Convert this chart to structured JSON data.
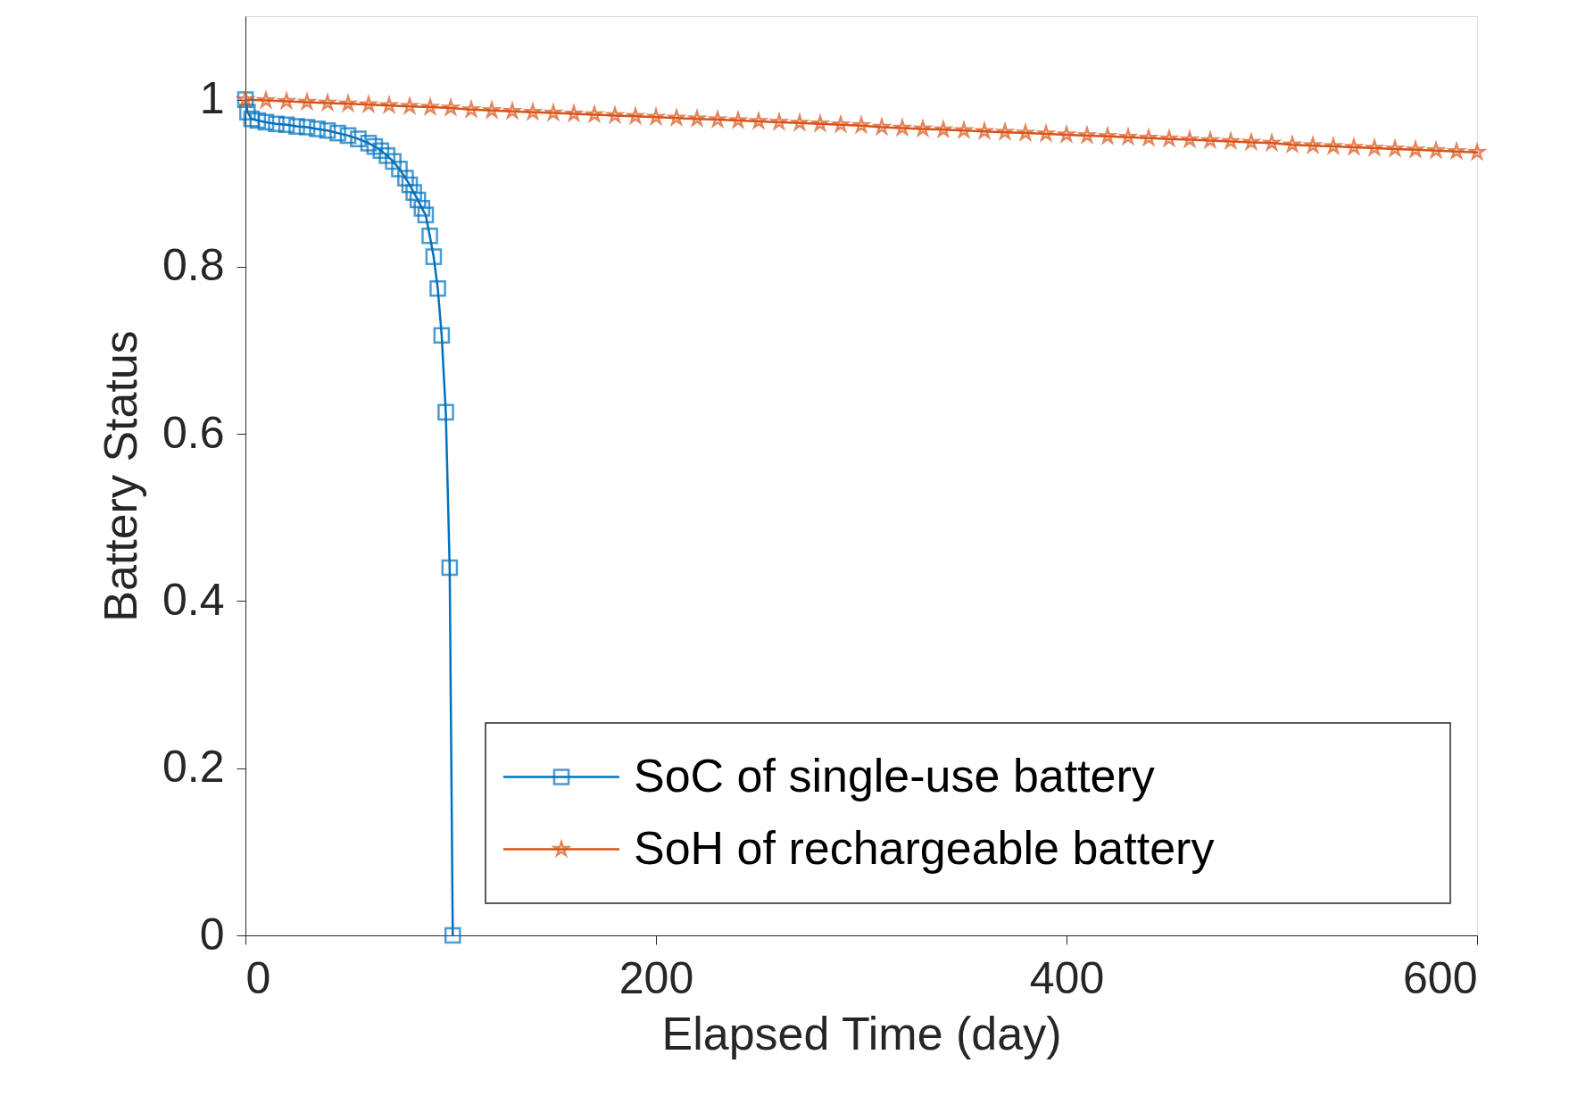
{
  "chart_data": {
    "type": "line",
    "xlabel": "Elapsed Time (day)",
    "ylabel": "Battery Status",
    "xlim": [
      0,
      600
    ],
    "ylim": [
      0,
      1.1
    ],
    "xticks": [
      0,
      200,
      400,
      600
    ],
    "yticks": [
      0,
      0.2,
      0.4,
      0.6,
      0.8,
      1
    ],
    "grid": false,
    "legend": "bottom right",
    "line_style": "solid",
    "series": [
      {
        "name": "SoC of single-use battery",
        "color": "#0072bd",
        "marker": "square",
        "x": [
          0,
          1,
          3,
          6,
          10,
          15,
          20,
          25,
          30,
          35,
          40,
          45,
          50,
          55,
          60,
          63,
          66,
          69,
          72,
          75,
          78,
          80,
          82,
          84,
          86,
          87.8,
          89.8,
          91.7,
          93.7,
          95.6,
          97.6,
          99.5,
          101
        ],
        "values": [
          1.0,
          0.985,
          0.977,
          0.975,
          0.973,
          0.971,
          0.97,
          0.968,
          0.967,
          0.965,
          0.963,
          0.96,
          0.957,
          0.953,
          0.948,
          0.944,
          0.939,
          0.933,
          0.926,
          0.917,
          0.906,
          0.898,
          0.889,
          0.88,
          0.87,
          0.862,
          0.837,
          0.812,
          0.774,
          0.718,
          0.626,
          0.44,
          0.0
        ]
      },
      {
        "name": "SoH of rechargeable battery",
        "color": "#d95319",
        "marker": "star",
        "x": [
          0,
          10,
          20,
          30,
          40,
          50,
          60,
          70,
          80,
          90,
          100,
          110,
          120,
          130,
          140,
          150,
          160,
          170,
          180,
          190,
          200,
          210,
          220,
          230,
          240,
          250,
          260,
          270,
          280,
          290,
          300,
          310,
          320,
          330,
          340,
          350,
          360,
          370,
          380,
          390,
          400,
          410,
          420,
          430,
          440,
          450,
          460,
          470,
          480,
          490,
          500,
          510,
          520,
          530,
          540,
          550,
          560,
          570,
          580,
          590,
          600
        ],
        "values": [
          1.0,
          0.999,
          0.998,
          0.997,
          0.996,
          0.995,
          0.994,
          0.993,
          0.992,
          0.991,
          0.99,
          0.988,
          0.987,
          0.986,
          0.985,
          0.984,
          0.983,
          0.982,
          0.981,
          0.98,
          0.979,
          0.978,
          0.977,
          0.976,
          0.975,
          0.974,
          0.973,
          0.972,
          0.971,
          0.97,
          0.969,
          0.967,
          0.966,
          0.965,
          0.964,
          0.963,
          0.962,
          0.961,
          0.96,
          0.959,
          0.958,
          0.957,
          0.956,
          0.955,
          0.954,
          0.953,
          0.952,
          0.951,
          0.95,
          0.949,
          0.948,
          0.946,
          0.945,
          0.944,
          0.943,
          0.942,
          0.941,
          0.94,
          0.939,
          0.938,
          0.937
        ]
      }
    ]
  }
}
